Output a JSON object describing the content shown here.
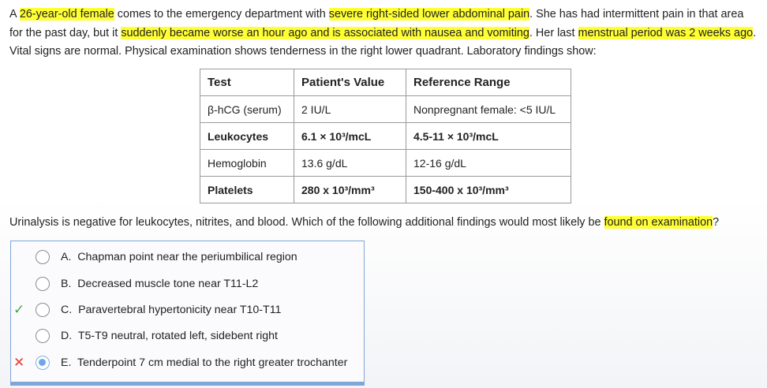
{
  "stem": {
    "s1": "A ",
    "h1": "26-year-old female",
    "s2": " comes to the emergency department with ",
    "h2": "severe right-sided lower abdominal pain",
    "s3": ".  She has had intermittent pain in that area for the past day, but it ",
    "h3": "suddenly became worse an hour ago and is associated with nausea and vomiting",
    "s4": ".  Her last ",
    "h4": "menstrual period was 2 weeks ago",
    "s5": ".  Vital signs are normal.  Physical examination shows tenderness in the right lower quadrant.  Laboratory findings show:"
  },
  "table": {
    "headers": [
      "Test",
      "Patient's Value",
      "Reference Range"
    ],
    "rows": [
      [
        "β-hCG (serum)",
        "2 IU/L",
        "Nonpregnant female: <5 IU/L"
      ],
      [
        "Leukocytes",
        "6.1 × 10³/mcL",
        "4.5-11 × 10³/mcL"
      ],
      [
        "Hemoglobin",
        "13.6 g/dL",
        "12-16 g/dL"
      ],
      [
        "Platelets",
        "280 x 10³/mm³",
        "150-400 x 10³/mm³"
      ]
    ]
  },
  "question": {
    "s1": "Urinalysis is negative for leukocytes, nitrites, and blood.  Which of the following additional findings would most likely be ",
    "h1": "found on examination",
    "s2": "?"
  },
  "choices": [
    {
      "letter": "A.",
      "text": "Chapman point near the periumbilical region",
      "mark": "",
      "selected": false
    },
    {
      "letter": "B.",
      "text": "Decreased muscle tone near T11-L2",
      "mark": "",
      "selected": false
    },
    {
      "letter": "C.",
      "text": "Paravertebral hypertonicity near T10-T11",
      "mark": "✓",
      "selected": false
    },
    {
      "letter": "D.",
      "text": "T5-T9 neutral, rotated left, sidebent right",
      "mark": "",
      "selected": false
    },
    {
      "letter": "E.",
      "text": "Tenderpoint 7 cm medial to the right greater trochanter",
      "mark": "✕",
      "selected": true
    }
  ],
  "colors": {
    "highlight": "#ffff33",
    "correct": "#46a546",
    "incorrect": "#e33c3c",
    "selected": "#6ea8e6"
  }
}
